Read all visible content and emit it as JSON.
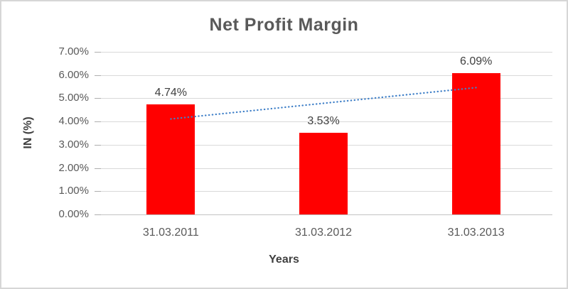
{
  "window": {
    "background_color": "#ffffff",
    "border_color": "#d6d6d6"
  },
  "chart_data": {
    "type": "bar",
    "title": "Net Profit Margin",
    "categories": [
      "31.03.2011",
      "31.03.2012",
      "31.03.2013"
    ],
    "series": [
      {
        "name": "Net Profit Margin",
        "values": [
          4.74,
          3.53,
          6.09
        ]
      }
    ],
    "values": [
      4.74,
      3.53,
      6.09
    ],
    "data_labels": [
      "4.74%",
      "3.53%",
      "6.09%"
    ],
    "xlabel": "Years",
    "ylabel": "IN (%)",
    "ylim": [
      0,
      7
    ],
    "ytick_step": 1,
    "ytick_labels": [
      "0.00%",
      "1.00%",
      "2.00%",
      "3.00%",
      "4.00%",
      "5.00%",
      "6.00%",
      "7.00%"
    ],
    "grid": true,
    "legend_position": "none",
    "bar_color": "#FF0000",
    "title_color": "#595959",
    "axis_label_color": "#595959",
    "data_label_color": "#404040",
    "gridline_color": "#d9d9d9",
    "trendline": {
      "type": "linear",
      "style": "dotted",
      "color": "#4080C8",
      "start_value": 4.11,
      "end_value": 5.46
    }
  }
}
